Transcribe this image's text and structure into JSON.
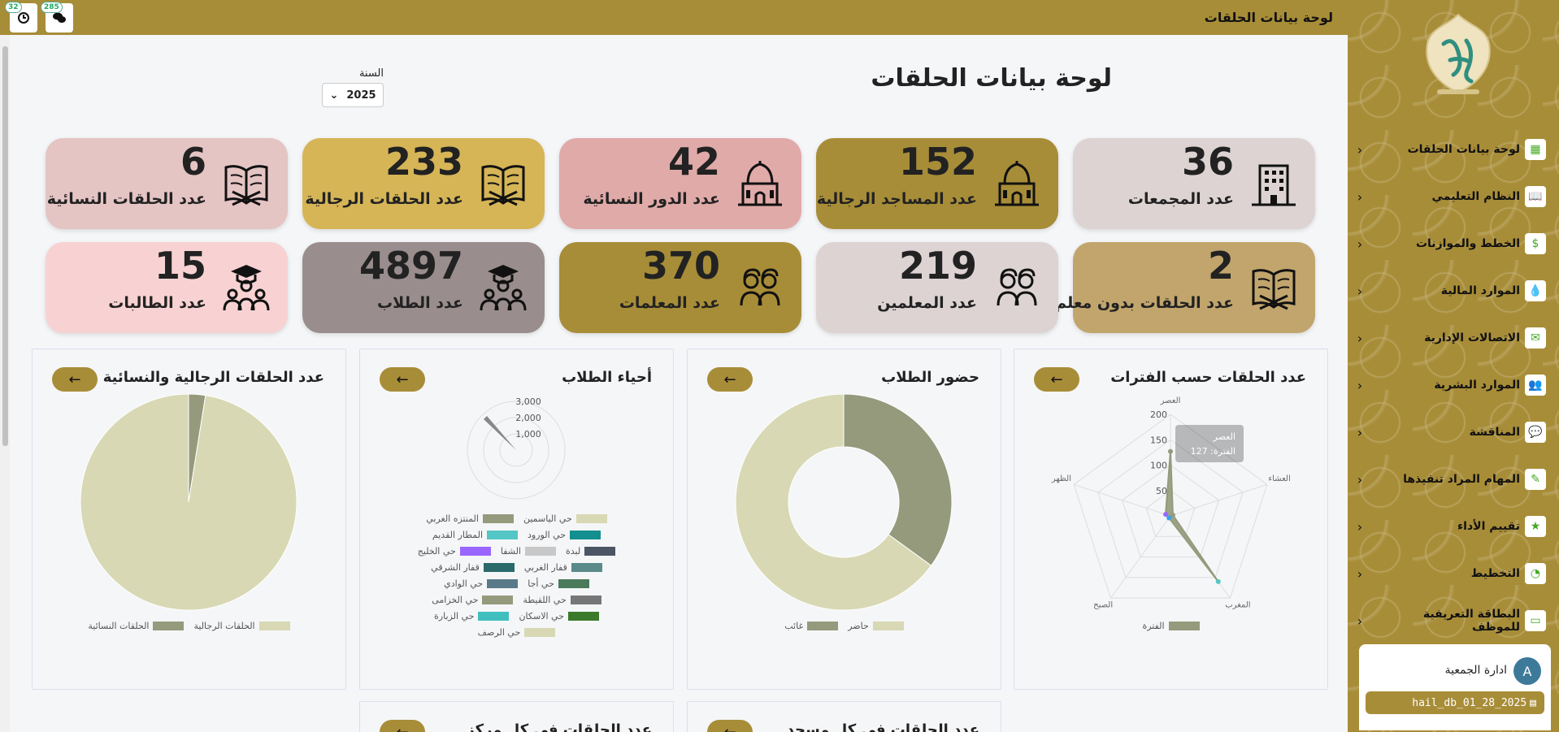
{
  "topbar": {
    "title": "لوحة بيانات الحلقات",
    "alerts_count": "32",
    "messages_count": "285"
  },
  "page": {
    "title": "لوحة بيانات الحلقات",
    "year_label": "السنة",
    "year_value": "2025"
  },
  "stats": [
    {
      "label": "عدد المجمعات",
      "value": "36",
      "color": "#ddd3d3",
      "icon": "building-icon"
    },
    {
      "label": "عدد المساجد الرجالية",
      "value": "152",
      "color": "#a88d38",
      "icon": "mosque-icon"
    },
    {
      "label": "عدد الدور النسائية",
      "value": "42",
      "color": "#e0aaa8",
      "icon": "mosque-icon"
    },
    {
      "label": "عدد الحلقات الرجالية",
      "value": "233",
      "color": "#d6b557",
      "icon": "quran-icon"
    },
    {
      "label": "عدد الحلقات النسائية",
      "value": "6",
      "color": "#e5c4c4",
      "icon": "quran-icon"
    },
    {
      "label": "عدد الحلقات بدون معلم",
      "value": "2",
      "color": "#c1a56c",
      "icon": "quran-icon"
    },
    {
      "label": "عدد المعلمين",
      "value": "219",
      "color": "#ddd3d3",
      "icon": "teachers-icon"
    },
    {
      "label": "عدد المعلمات",
      "value": "370",
      "color": "#a88d38",
      "icon": "teachers-icon"
    },
    {
      "label": "عدد الطلاب",
      "value": "4897",
      "color": "#998d8d",
      "icon": "students-icon"
    },
    {
      "label": "عدد الطالبات",
      "value": "15",
      "color": "#f8d2d2",
      "icon": "students-icon"
    }
  ],
  "panels": {
    "periods": {
      "title": "عدد الحلقات حسب الفترات"
    },
    "attendance": {
      "title": "حضور الطلاب"
    },
    "districts": {
      "title": "أحياء الطلاب"
    },
    "circles": {
      "title": "عدد الحلقات الرجالية والنسائية"
    },
    "per_mosque": {
      "title": "عدد الحلقات في كل مسجد"
    },
    "per_center": {
      "title": "عدد الحلقات في كل مركز"
    }
  },
  "chart_data": [
    {
      "type": "radar",
      "title": "عدد الحلقات حسب الفترات",
      "labels": [
        "العصر",
        "العشاء",
        "المغرب",
        "الصبح",
        "الظهر"
      ],
      "series": [
        {
          "name": "الفترة",
          "values": [
            127,
            5,
            160,
            5,
            10
          ]
        }
      ],
      "ticks": [
        "50",
        "100",
        "150",
        "200"
      ],
      "rlim": [
        0,
        200
      ],
      "tooltip": {
        "title": "العصر",
        "body": "الفترة: 127"
      },
      "colors": [
        "#959a7c"
      ]
    },
    {
      "type": "pie",
      "title": "حضور الطلاب",
      "categories": [
        "حاضر",
        "غائب"
      ],
      "values": [
        65,
        35
      ],
      "donut": true,
      "colors": [
        "#d8d8b4",
        "#959a7c"
      ]
    },
    {
      "type": "polar",
      "title": "أحياء الطلاب",
      "ticks": [
        "1,000",
        "2,000",
        "3,000"
      ],
      "categories": [
        "حي الياسمين",
        "المنتزه الغربي",
        "حي الورود",
        "المطار القديم",
        "لبدة",
        "الشفا",
        "حي الخليج",
        "قفار الغربي",
        "قفار الشرقي",
        "حي أجا",
        "حي الوادي",
        "حي اللقيطة",
        "حي الخزامى",
        "حي الاسكان",
        "حي الزبارة",
        "حي الرصف"
      ],
      "colors": [
        "#d8d8b4",
        "#959a7c",
        "#138f8f",
        "#54c6c6",
        "#4b5563",
        "#c8c8c8",
        "#9966ff",
        "#5a8a8a",
        "#2a6a6a",
        "#4a7a5a",
        "#5a7a8a",
        "#777777",
        "#959a7c",
        "#3a7a2a",
        "#40bfbf",
        "#d8d8b4"
      ]
    },
    {
      "type": "pie",
      "title": "عدد الحلقات الرجالية والنسائية",
      "categories": [
        "الحلقات الرجالية",
        "الحلقات النسائية"
      ],
      "values": [
        233,
        6
      ],
      "colors": [
        "#d8d8b4",
        "#959a7c"
      ]
    }
  ],
  "sidebar": {
    "items": [
      {
        "label": "لوحة بيانات الحلقات",
        "icon": "dashboard-icon"
      },
      {
        "label": "النظام التعليمي",
        "icon": "book-icon"
      },
      {
        "label": "الخطط والموازنات",
        "icon": "dollar-icon"
      },
      {
        "label": "الموارد المالية",
        "icon": "money-drop-icon"
      },
      {
        "label": "الاتصالات الإدارية",
        "icon": "mail-icon"
      },
      {
        "label": "الموارد البشرية",
        "icon": "people-icon"
      },
      {
        "label": "المناقشة",
        "icon": "discussion-icon"
      },
      {
        "label": "المهام المراد تنفيذها",
        "icon": "pen-icon"
      },
      {
        "label": "تقييم الأداء",
        "icon": "star-icon"
      },
      {
        "label": "التخطيط",
        "icon": "gauge-icon"
      },
      {
        "label": "البطاقة التعريفية للموظف",
        "icon": "id-card-icon"
      }
    ],
    "user": {
      "initial": "A",
      "name": "ادارة الجمعية"
    },
    "db_name": "hail_db_01_28_2025"
  }
}
